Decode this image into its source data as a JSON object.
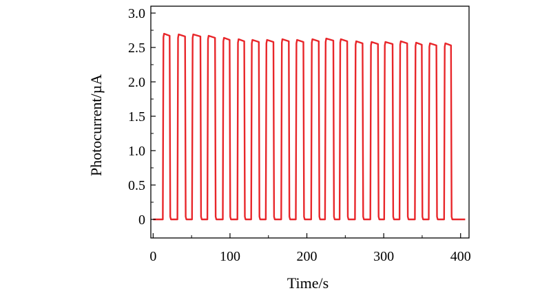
{
  "chart_data": {
    "type": "line",
    "xlabel": "Time/s",
    "ylabel": "Photocurrent/µA",
    "xlim": [
      -3,
      411
    ],
    "ylim": [
      -0.27,
      3.1
    ],
    "xticks": [
      0,
      100,
      200,
      300,
      400
    ],
    "xtick_labels": [
      "0",
      "100",
      "200",
      "300",
      "400"
    ],
    "yticks": [
      0,
      0.5,
      1.0,
      1.5,
      2.0,
      2.5,
      3.0
    ],
    "ytick_labels": [
      "0",
      "0.5",
      "1.0",
      "1.5",
      "2.0",
      "2.5",
      "3.0"
    ],
    "grid": false,
    "legend": "none",
    "series": [
      {
        "color": "#e8262a",
        "baseline": 0,
        "pulses": [
          {
            "on": 13,
            "off": 22,
            "value": 2.7
          },
          {
            "on": 32,
            "off": 42,
            "value": 2.69
          },
          {
            "on": 51,
            "off": 62,
            "value": 2.69
          },
          {
            "on": 71,
            "off": 81,
            "value": 2.67
          },
          {
            "on": 91,
            "off": 100,
            "value": 2.64
          },
          {
            "on": 110,
            "off": 119,
            "value": 2.62
          },
          {
            "on": 128,
            "off": 138,
            "value": 2.61
          },
          {
            "on": 147,
            "off": 157,
            "value": 2.61
          },
          {
            "on": 167,
            "off": 177,
            "value": 2.62
          },
          {
            "on": 186,
            "off": 196,
            "value": 2.61
          },
          {
            "on": 206,
            "off": 216,
            "value": 2.62
          },
          {
            "on": 224,
            "off": 235,
            "value": 2.63
          },
          {
            "on": 243,
            "off": 253,
            "value": 2.62
          },
          {
            "on": 263,
            "off": 273,
            "value": 2.59
          },
          {
            "on": 283,
            "off": 293,
            "value": 2.58
          },
          {
            "on": 301,
            "off": 312,
            "value": 2.58
          },
          {
            "on": 321,
            "off": 331,
            "value": 2.59
          },
          {
            "on": 341,
            "off": 350,
            "value": 2.57
          },
          {
            "on": 359,
            "off": 369,
            "value": 2.56
          },
          {
            "on": 379,
            "off": 388,
            "value": 2.56
          }
        ],
        "end_x": 406
      }
    ]
  }
}
